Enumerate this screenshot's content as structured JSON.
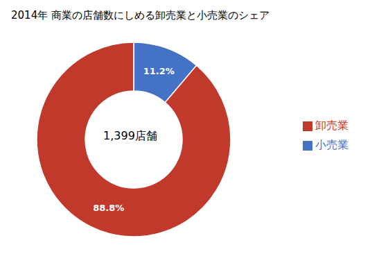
{
  "chart_data": {
    "type": "pie",
    "title": "2014年 商業の店舗数にしめる卸売業と小売業のシェア",
    "categories": [
      "小売業",
      "卸売業"
    ],
    "values": [
      11.2,
      88.8
    ],
    "value_labels": [
      "11.2%",
      "88.8%"
    ],
    "colors": [
      "#4472C4",
      "#C0392B"
    ],
    "annotations": [
      "1,399店舗"
    ],
    "data_labels": true,
    "legend": "right"
  }
}
